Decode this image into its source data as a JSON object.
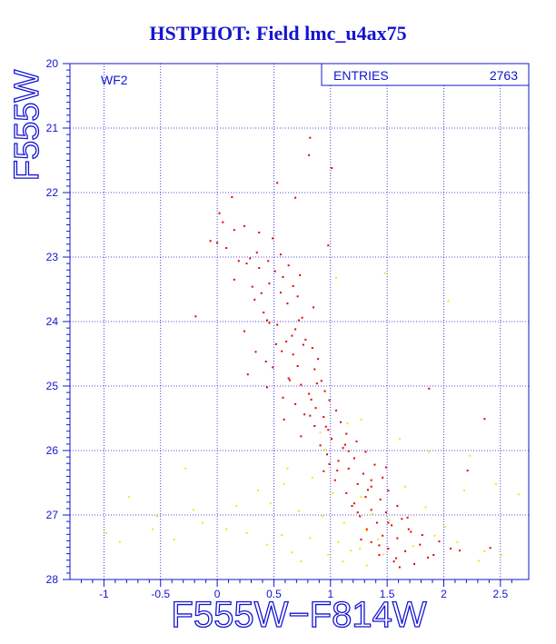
{
  "title": "HSTPHOT: Field lmc_u4ax75",
  "colors": {
    "axis": "#1414d2",
    "grid": "#1414d2",
    "main_points": "#e00000",
    "faint_points": "#f2ea00"
  },
  "chart_data": {
    "type": "scatter",
    "title": "HSTPHOT: Field lmc_u4ax75",
    "xlabel": "F555W−F814W",
    "ylabel": "F555W",
    "xlim": [
      -1.3,
      2.75
    ],
    "ylim": [
      28,
      20
    ],
    "y_inverted": true,
    "grid": true,
    "panel_label": "WF2",
    "stats": {
      "label": "ENTRIES",
      "value": "2763"
    },
    "x_ticks": [
      -1,
      -0.5,
      0,
      0.5,
      1,
      1.5,
      2,
      2.5
    ],
    "x_tick_labels": [
      "-1",
      "-0.5",
      "0",
      "0.5",
      "1",
      "1.5",
      "2",
      "2.5"
    ],
    "y_ticks": [
      20,
      21,
      22,
      23,
      24,
      25,
      26,
      27,
      28
    ],
    "y_tick_labels": [
      "20",
      "21",
      "22",
      "23",
      "24",
      "25",
      "26",
      "27",
      "28"
    ],
    "series": [
      {
        "color": "#e00000",
        "points": [
          [
            0.82,
            21.15
          ],
          [
            0.81,
            21.42
          ],
          [
            1.01,
            21.62
          ],
          [
            0.53,
            21.85
          ],
          [
            0.69,
            22.08
          ],
          [
            0.13,
            22.07
          ],
          [
            0.02,
            22.32
          ],
          [
            0.05,
            22.46
          ],
          [
            0.24,
            22.52
          ],
          [
            0.15,
            22.58
          ],
          [
            0.37,
            22.62
          ],
          [
            0.49,
            22.71
          ],
          [
            0.0,
            22.78
          ],
          [
            -0.06,
            22.75
          ],
          [
            0.08,
            22.86
          ],
          [
            0.98,
            22.82
          ],
          [
            0.35,
            22.93
          ],
          [
            0.56,
            22.96
          ],
          [
            0.29,
            23.02
          ],
          [
            0.45,
            23.06
          ],
          [
            0.26,
            23.1
          ],
          [
            0.63,
            23.13
          ],
          [
            0.37,
            23.17
          ],
          [
            0.51,
            23.22
          ],
          [
            0.73,
            23.28
          ],
          [
            0.15,
            23.35
          ],
          [
            0.46,
            23.41
          ],
          [
            0.67,
            23.45
          ],
          [
            0.56,
            23.55
          ],
          [
            0.71,
            23.61
          ],
          [
            0.33,
            23.66
          ],
          [
            0.62,
            23.72
          ],
          [
            0.85,
            23.78
          ],
          [
            -0.19,
            23.92
          ],
          [
            0.75,
            23.94
          ],
          [
            0.44,
            23.98
          ],
          [
            0.53,
            24.05
          ],
          [
            0.69,
            24.12
          ],
          [
            0.24,
            24.15
          ],
          [
            0.66,
            24.22
          ],
          [
            0.78,
            24.28
          ],
          [
            0.52,
            24.35
          ],
          [
            0.84,
            24.41
          ],
          [
            0.34,
            24.47
          ],
          [
            0.67,
            24.51
          ],
          [
            0.89,
            24.58
          ],
          [
            0.43,
            24.62
          ],
          [
            0.71,
            24.69
          ],
          [
            0.86,
            24.74
          ],
          [
            0.27,
            24.82
          ],
          [
            0.63,
            24.88
          ],
          [
            0.92,
            24.92
          ],
          [
            0.74,
            24.98
          ],
          [
            0.44,
            25.02
          ],
          [
            0.95,
            25.08
          ],
          [
            0.81,
            25.12
          ],
          [
            0.58,
            25.18
          ],
          [
            0.99,
            25.22
          ],
          [
            0.69,
            25.28
          ],
          [
            0.87,
            25.34
          ],
          [
            1.05,
            25.38
          ],
          [
            0.77,
            25.44
          ],
          [
            0.94,
            25.48
          ],
          [
            0.59,
            25.52
          ],
          [
            1.09,
            25.56
          ],
          [
            0.86,
            25.62
          ],
          [
            0.98,
            25.68
          ],
          [
            1.14,
            25.74
          ],
          [
            0.74,
            25.78
          ],
          [
            1.01,
            25.82
          ],
          [
            1.23,
            25.86
          ],
          [
            0.91,
            25.92
          ],
          [
            1.11,
            25.96
          ],
          [
            1.31,
            26.02
          ],
          [
            0.97,
            26.06
          ],
          [
            1.21,
            26.12
          ],
          [
            1.07,
            26.16
          ],
          [
            1.39,
            26.22
          ],
          [
            1.16,
            26.28
          ],
          [
            0.94,
            26.32
          ],
          [
            1.29,
            26.36
          ],
          [
            1.46,
            26.42
          ],
          [
            1.04,
            26.46
          ],
          [
            1.24,
            26.52
          ],
          [
            1.36,
            26.56
          ],
          [
            1.51,
            26.62
          ],
          [
            1.14,
            26.66
          ],
          [
            1.31,
            26.72
          ],
          [
            1.44,
            26.76
          ],
          [
            1.21,
            26.82
          ],
          [
            1.59,
            26.86
          ],
          [
            1.36,
            26.92
          ],
          [
            1.49,
            26.96
          ],
          [
            1.26,
            27.02
          ],
          [
            1.63,
            27.06
          ],
          [
            1.41,
            27.12
          ],
          [
            1.54,
            27.16
          ],
          [
            1.32,
            27.22
          ],
          [
            1.71,
            27.26
          ],
          [
            1.46,
            27.32
          ],
          [
            1.59,
            27.36
          ],
          [
            1.36,
            27.42
          ],
          [
            1.79,
            27.46
          ],
          [
            1.51,
            27.52
          ],
          [
            1.66,
            27.56
          ],
          [
            1.43,
            27.62
          ],
          [
            1.86,
            27.66
          ],
          [
            1.56,
            27.72
          ],
          [
            1.74,
            27.76
          ],
          [
            1.61,
            27.81
          ],
          [
            1.91,
            27.62
          ],
          [
            2.14,
            27.55
          ],
          [
            2.36,
            25.51
          ],
          [
            1.87,
            25.04
          ],
          [
            2.41,
            27.51
          ],
          [
            1.06,
            26.31
          ],
          [
            1.19,
            26.86
          ],
          [
            1.27,
            27.38
          ],
          [
            0.76,
            24.36
          ],
          [
            0.57,
            24.46
          ],
          [
            0.96,
            25.63
          ],
          [
            0.41,
            23.86
          ],
          [
            0.31,
            23.46
          ],
          [
            1.16,
            26.01
          ],
          [
            1.36,
            26.46
          ],
          [
            1.51,
            27.12
          ],
          [
            1.68,
            27.04
          ],
          [
            1.81,
            27.31
          ],
          [
            1.96,
            27.41
          ],
          [
            2.06,
            27.52
          ],
          [
            2.21,
            26.31
          ],
          [
            1.49,
            26.26
          ],
          [
            0.64,
            24.91
          ],
          [
            0.49,
            24.71
          ],
          [
            0.83,
            25.21
          ],
          [
            1.13,
            25.91
          ],
          [
            1.33,
            26.61
          ],
          [
            1.43,
            27.47
          ],
          [
            1.58,
            27.67
          ],
          [
            1.69,
            27.22
          ],
          [
            1.24,
            26.96
          ],
          [
            0.99,
            26.21
          ],
          [
            0.88,
            24.96
          ],
          [
            0.72,
            23.98
          ],
          [
            0.58,
            23.31
          ],
          [
            0.39,
            23.56
          ],
          [
            0.19,
            23.06
          ],
          [
            0.61,
            24.31
          ],
          [
            0.46,
            24.02
          ],
          [
            0.82,
            25.46
          ]
        ]
      },
      {
        "color": "#f2ea00",
        "points": [
          [
            1.05,
            23.32
          ],
          [
            1.48,
            23.25
          ],
          [
            2.04,
            23.68
          ],
          [
            0.91,
            25.72
          ],
          [
            1.15,
            25.58
          ],
          [
            1.27,
            25.52
          ],
          [
            1.61,
            25.82
          ],
          [
            1.87,
            26.02
          ],
          [
            0.62,
            26.28
          ],
          [
            0.84,
            26.42
          ],
          [
            1.02,
            26.66
          ],
          [
            1.27,
            26.72
          ],
          [
            0.47,
            26.82
          ],
          [
            0.72,
            26.94
          ],
          [
            0.93,
            27.02
          ],
          [
            1.12,
            27.12
          ],
          [
            1.32,
            27.25
          ],
          [
            0.57,
            27.31
          ],
          [
            0.82,
            27.36
          ],
          [
            1.07,
            27.42
          ],
          [
            1.26,
            27.52
          ],
          [
            1.47,
            27.61
          ],
          [
            0.66,
            27.58
          ],
          [
            0.98,
            27.62
          ],
          [
            1.42,
            27.38
          ],
          [
            1.73,
            27.48
          ],
          [
            1.92,
            27.32
          ],
          [
            2.12,
            27.42
          ],
          [
            2.36,
            27.56
          ],
          [
            2.51,
            27.62
          ],
          [
            -0.28,
            26.28
          ],
          [
            -0.53,
            27.02
          ],
          [
            -0.78,
            26.72
          ],
          [
            -0.57,
            27.22
          ],
          [
            -0.38,
            27.38
          ],
          [
            -0.13,
            27.12
          ],
          [
            0.08,
            27.22
          ],
          [
            0.26,
            27.28
          ],
          [
            -0.98,
            27.28
          ],
          [
            -0.86,
            27.42
          ],
          [
            2.46,
            26.52
          ],
          [
            2.66,
            26.68
          ],
          [
            2.23,
            26.08
          ],
          [
            1.37,
            26.98
          ],
          [
            1.52,
            27.08
          ],
          [
            1.18,
            27.55
          ],
          [
            0.36,
            26.62
          ],
          [
            0.17,
            26.86
          ],
          [
            0.95,
            25.98
          ],
          [
            1.66,
            26.56
          ],
          [
            1.84,
            26.88
          ],
          [
            2.01,
            27.18
          ],
          [
            1.11,
            27.72
          ],
          [
            1.32,
            27.78
          ],
          [
            0.74,
            27.72
          ],
          [
            0.44,
            27.46
          ],
          [
            0.59,
            26.52
          ],
          [
            -0.21,
            26.92
          ],
          [
            2.31,
            27.71
          ],
          [
            2.18,
            26.62
          ]
        ]
      }
    ]
  }
}
